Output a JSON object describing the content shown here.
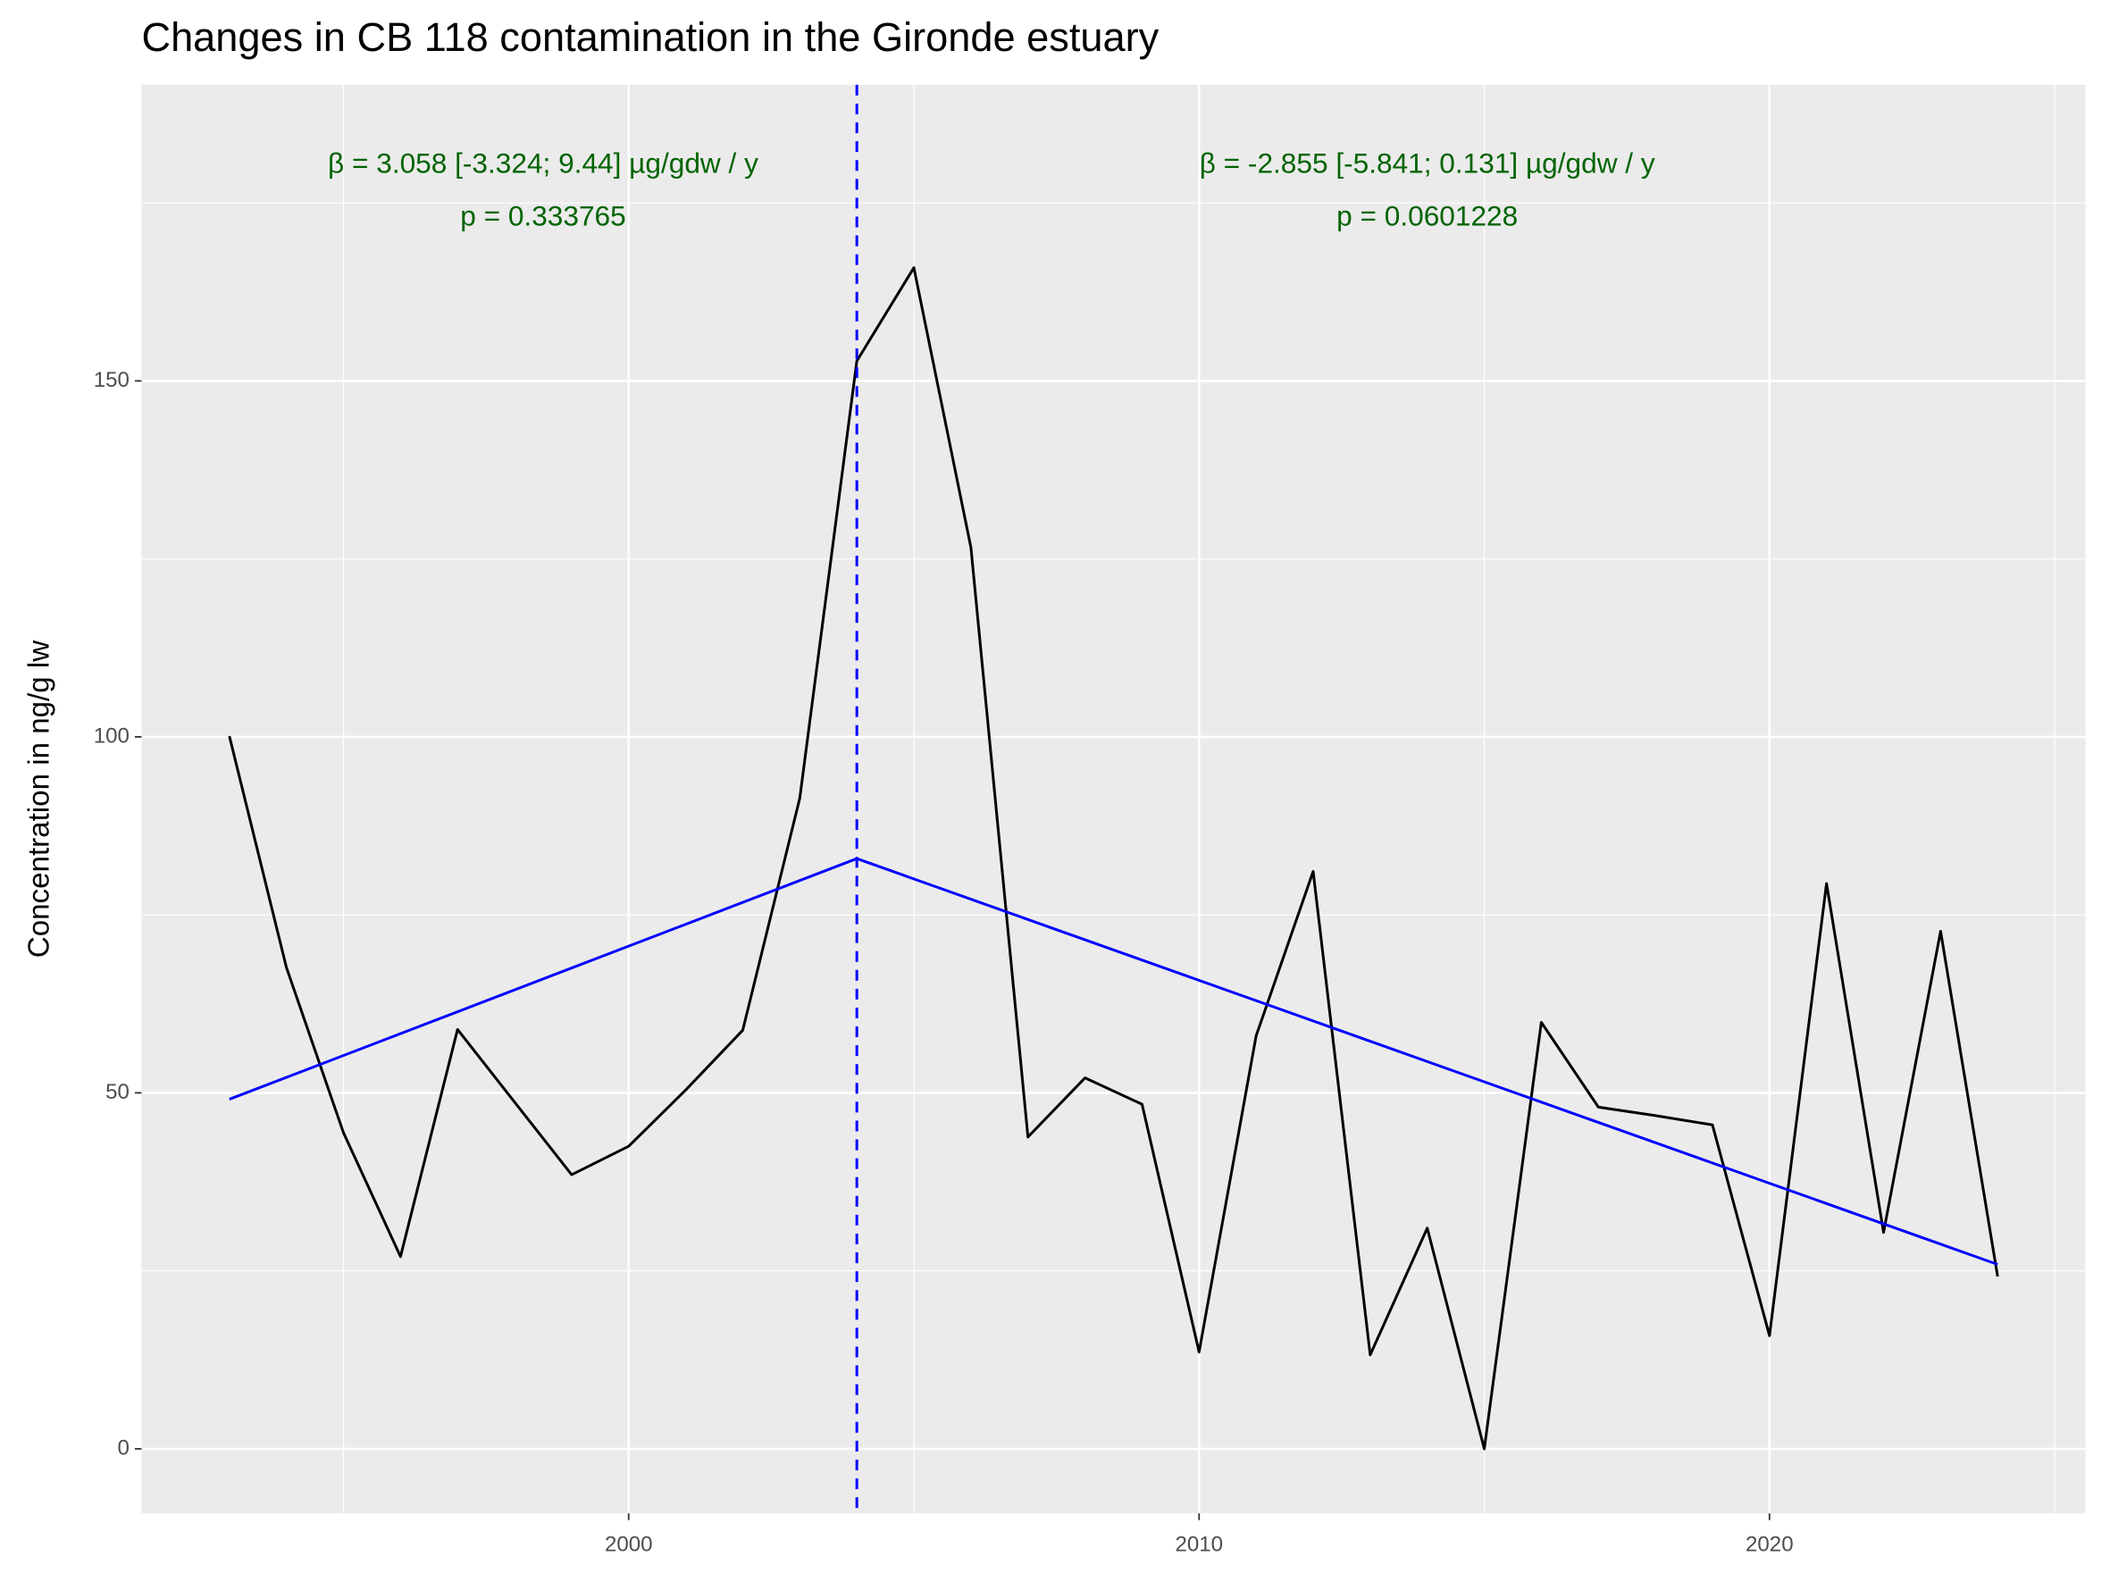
{
  "chart_data": {
    "type": "line",
    "title": "Changes in CB 118 contamination in the Gironde estuary",
    "y_label": "Concentration in ng/g lw",
    "x": [
      1993,
      1994,
      1995,
      1996,
      1997,
      1998,
      1999,
      2000,
      2001,
      2002,
      2003,
      2004,
      2005,
      2006,
      2007,
      2008,
      2009,
      2010,
      2011,
      2012,
      2013,
      2014,
      2015,
      2016,
      2017,
      2018,
      2019,
      2020,
      2021,
      2022,
      2023,
      2024
    ],
    "series": [
      {
        "color": "#000000",
        "values": [
          100.1,
          67.6,
          44.4,
          27.0,
          58.9,
          48.7,
          38.5,
          42.5,
          50.4,
          58.8,
          91.4,
          152.8,
          165.9,
          126.6,
          43.8,
          52.1,
          48.4,
          13.6,
          58.0,
          81.1,
          13.2,
          31.0,
          0,
          59.9,
          48.0,
          46.8,
          45.5,
          15.9,
          79.4,
          30.4,
          72.7,
          24.2
        ]
      }
    ],
    "trend": {
      "color": "#0000ff",
      "x": [
        1993,
        2004,
        2024
      ],
      "values": [
        49.1,
        82.9,
        25.9
      ]
    },
    "breakpoint": {
      "x": 2004,
      "color": "#0000ff"
    },
    "annotations": [
      {
        "color": "#006400",
        "lines": [
          "β = 3.058 [-3.324; 9.44] µg/gdw / y",
          "p = 0.333765"
        ]
      },
      {
        "color": "#006400",
        "lines": [
          "β = -2.855 [-5.841; 0.131] µg/gdw / y",
          "p = 0.0601228"
        ]
      }
    ],
    "xlim": [
      1991.46,
      2025.54
    ],
    "ylim": [
      -9.07,
      191.6
    ],
    "xticks": [
      2000,
      2010,
      2020
    ],
    "yticks": [
      0,
      50,
      100,
      150
    ],
    "minor_xticks": [
      1995,
      2005,
      2015,
      2025
    ],
    "minor_yticks": [
      25,
      75,
      125,
      175
    ],
    "grid": true
  }
}
